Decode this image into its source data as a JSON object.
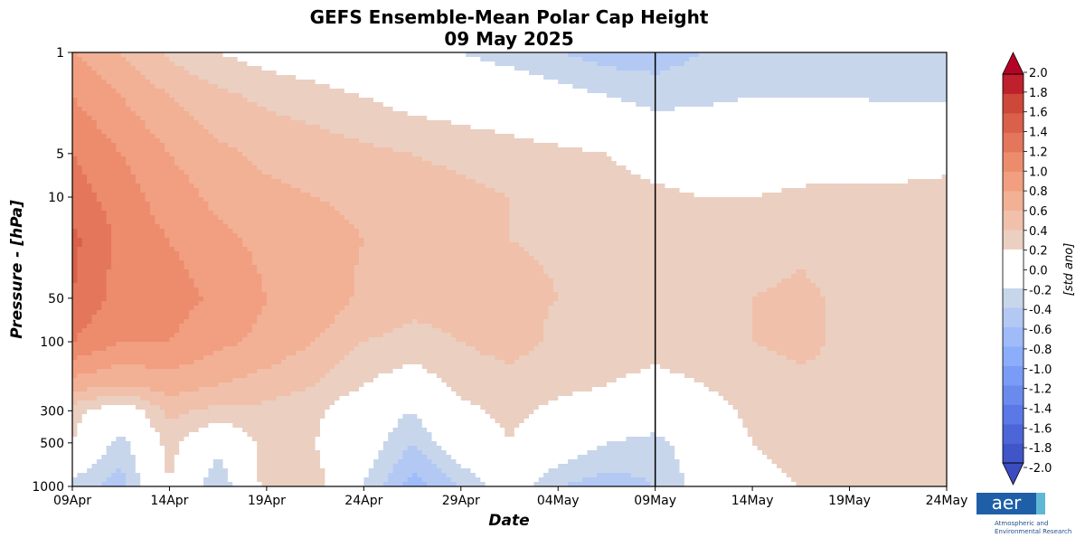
{
  "chart_data": {
    "type": "heatmap",
    "title": "GEFS Ensemble-Mean Polar Cap Height",
    "subtitle": "09 May 2025",
    "xlabel": "Date",
    "ylabel": "Pressure - [hPa]",
    "x_ticks": [
      "09Apr",
      "14Apr",
      "19Apr",
      "24Apr",
      "29Apr",
      "04May",
      "09May",
      "14May",
      "19May",
      "24May"
    ],
    "x_range_days": [
      0,
      45
    ],
    "y_ticks": [
      1,
      5,
      10,
      50,
      100,
      300,
      500,
      1000
    ],
    "y_scale": "log",
    "y_range_hpa": [
      1000,
      1
    ],
    "forecast_start": "09May",
    "forecast_start_day": 30,
    "colorbar": {
      "label": "[std ano]",
      "ticks": [
        "2.0",
        "1.8",
        "1.6",
        "1.4",
        "1.2",
        "1.0",
        "0.8",
        "0.6",
        "0.4",
        "0.2",
        "0.0",
        "-0.2",
        "-0.4",
        "-0.6",
        "-0.8",
        "-1.0",
        "-1.2",
        "-1.4",
        "-1.6",
        "-1.8",
        "-2.0"
      ],
      "min": -2.0,
      "max": 2.0,
      "step": 0.2,
      "extend": "both",
      "colormap": "coolwarm"
    },
    "field_nodes": {
      "days": [
        0,
        2.5,
        5,
        7.5,
        10,
        12.5,
        15,
        17.5,
        20,
        22.5,
        25,
        27.5,
        30,
        32.5,
        35,
        37.5,
        40,
        42.5,
        45
      ],
      "pressures_hpa": [
        1,
        2,
        5,
        10,
        20,
        50,
        100,
        200,
        300,
        500,
        1000
      ],
      "values": [
        [
          0.8,
          0.6,
          0.35,
          0.2,
          0.1,
          0.0,
          -0.2,
          -0.2,
          -0.2,
          -0.3,
          -0.4,
          -0.5,
          -0.5,
          -0.4,
          -0.35,
          -0.3,
          -0.3,
          -0.3,
          -0.3
        ],
        [
          1.0,
          0.8,
          0.6,
          0.45,
          0.35,
          0.3,
          0.2,
          0.1,
          0.05,
          0.0,
          -0.1,
          -0.2,
          -0.3,
          -0.25,
          -0.2,
          -0.2,
          -0.2,
          -0.25,
          -0.25
        ],
        [
          1.2,
          1.0,
          0.8,
          0.65,
          0.55,
          0.5,
          0.45,
          0.4,
          0.35,
          0.3,
          0.25,
          0.2,
          0.1,
          0.05,
          0.0,
          0.05,
          0.1,
          0.1,
          0.15
        ],
        [
          1.3,
          1.1,
          0.9,
          0.75,
          0.65,
          0.6,
          0.55,
          0.5,
          0.45,
          0.4,
          0.35,
          0.3,
          0.25,
          0.2,
          0.2,
          0.25,
          0.25,
          0.25,
          0.25
        ],
        [
          1.45,
          1.15,
          1.0,
          0.85,
          0.75,
          0.7,
          0.6,
          0.5,
          0.45,
          0.4,
          0.38,
          0.35,
          0.3,
          0.25,
          0.3,
          0.35,
          0.3,
          0.25,
          0.25
        ],
        [
          1.4,
          1.1,
          1.1,
          0.95,
          0.8,
          0.75,
          0.55,
          0.45,
          0.45,
          0.45,
          0.4,
          0.35,
          0.3,
          0.3,
          0.4,
          0.45,
          0.35,
          0.3,
          0.3
        ],
        [
          1.2,
          1.0,
          1.0,
          0.85,
          0.75,
          0.6,
          0.4,
          0.35,
          0.4,
          0.5,
          0.35,
          0.3,
          0.25,
          0.3,
          0.4,
          0.45,
          0.35,
          0.3,
          0.3
        ],
        [
          0.7,
          0.6,
          0.7,
          0.6,
          0.5,
          0.4,
          0.2,
          0.05,
          0.25,
          0.3,
          0.25,
          0.2,
          0.15,
          0.2,
          0.3,
          0.35,
          0.4,
          0.35,
          0.35
        ],
        [
          0.3,
          0.0,
          0.45,
          0.35,
          0.35,
          0.25,
          0.0,
          -0.2,
          0.15,
          0.25,
          0.15,
          0.1,
          0.05,
          0.1,
          0.25,
          0.3,
          0.35,
          0.35,
          0.3
        ],
        [
          0.2,
          -0.3,
          0.3,
          -0.1,
          0.3,
          0.2,
          -0.05,
          -0.4,
          0.0,
          0.2,
          0.0,
          -0.2,
          -0.3,
          0.0,
          0.2,
          0.3,
          0.3,
          0.35,
          0.3
        ],
        [
          -0.3,
          -0.5,
          0.2,
          -0.4,
          0.3,
          0.3,
          -0.2,
          -0.7,
          -0.4,
          0.0,
          -0.4,
          -0.5,
          -0.4,
          -0.1,
          0.1,
          0.2,
          0.25,
          0.2,
          0.2
        ]
      ]
    }
  },
  "branding": {
    "logo_text": "aer",
    "org_line1": "Atmospheric and",
    "org_line2": "Environmental Research"
  }
}
